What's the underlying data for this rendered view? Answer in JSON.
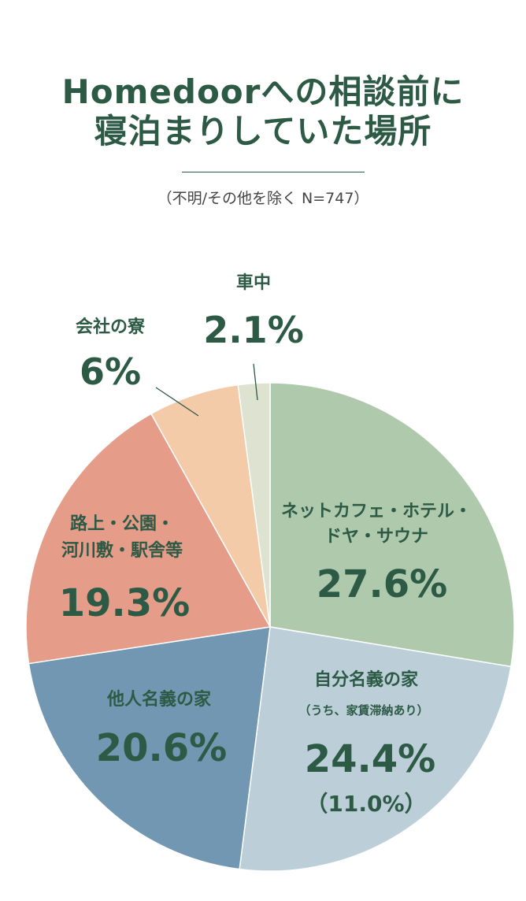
{
  "chart_data": {
    "type": "pie",
    "title": "Homedoorへの相談前に寝泊まりしていた場所",
    "title_lines": [
      "Homedoorへの相談前に",
      "寝泊まりしていた場所"
    ],
    "subtitle": "（不明/その他を除く N=747）",
    "unit": "%",
    "start_angle_deg": 0,
    "direction": "clockwise",
    "slices": [
      {
        "label_lines": [
          "ネットカフェ・ホテル・",
          "ドヤ・サウナ"
        ],
        "value": 27.6,
        "value_label": "27.6%",
        "color": "#afc9ac"
      },
      {
        "label_lines": [
          "自分名義の家"
        ],
        "note": "（うち、家賃滞納あり）",
        "value": 24.4,
        "value_label": "24.4%",
        "sub_value": 11.0,
        "sub_value_label": "（11.0%）",
        "color": "#bccfd9"
      },
      {
        "label_lines": [
          "他人名義の家"
        ],
        "value": 20.6,
        "value_label": "20.6%",
        "color": "#7197b2"
      },
      {
        "label_lines": [
          "路上・公園・",
          "河川敷・駅舎等"
        ],
        "value": 19.3,
        "value_label": "19.3%",
        "color": "#e59c89"
      },
      {
        "label_lines": [
          "会社の寮"
        ],
        "value": 6,
        "value_label": "6%",
        "color": "#f4cba9"
      },
      {
        "label_lines": [
          "車中"
        ],
        "value": 2.1,
        "value_label": "2.1%",
        "color": "#dee3d1"
      }
    ],
    "legend": "none",
    "grid": false
  }
}
